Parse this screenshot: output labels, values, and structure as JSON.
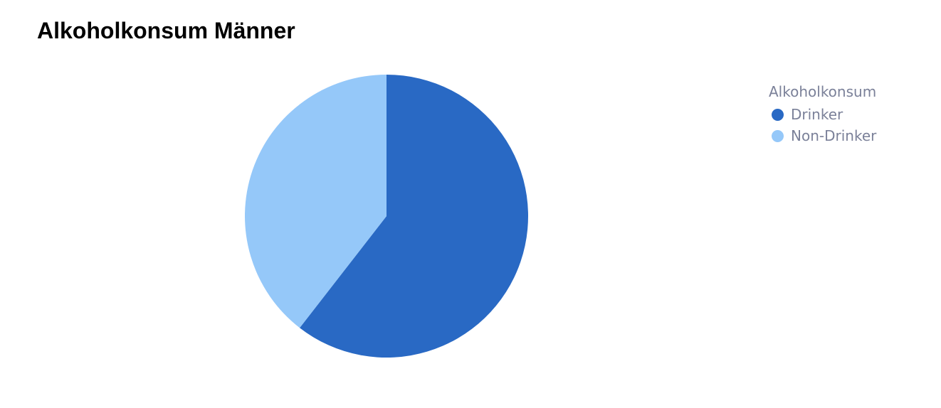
{
  "chart_data": {
    "type": "pie",
    "title": "Alkoholkonsum Männer",
    "legend_title": "Alkoholkonsum",
    "legend_placement": "top-right",
    "slices": [
      {
        "label": "Drinker",
        "value": 60.5,
        "color": "#2969c4"
      },
      {
        "label": "Non-Drinker",
        "value": 39.5,
        "color": "#95c8f9"
      }
    ]
  }
}
